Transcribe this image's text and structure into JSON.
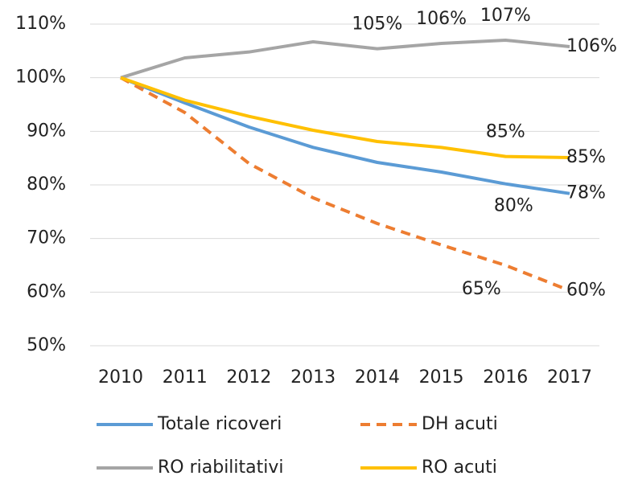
{
  "chart_data": {
    "type": "line",
    "categories": [
      "2010",
      "2011",
      "2012",
      "2013",
      "2014",
      "2015",
      "2016",
      "2017"
    ],
    "series": [
      {
        "name": "Totale ricoveri",
        "color": "#5b9bd5",
        "dashed": false,
        "values": [
          100,
          95.3,
          90.8,
          87.0,
          84.2,
          82.4,
          80.2,
          78.4
        ],
        "value_labels": [
          null,
          null,
          null,
          null,
          null,
          null,
          "80%",
          "78%"
        ]
      },
      {
        "name": "DH acuti",
        "color": "#ed7d31",
        "dashed": true,
        "values": [
          100,
          93.5,
          84.0,
          77.6,
          72.8,
          68.8,
          65.0,
          60.3
        ],
        "value_labels": [
          null,
          null,
          null,
          null,
          null,
          null,
          "65%",
          "60%"
        ]
      },
      {
        "name": "RO riabilitativi",
        "color": "#a5a5a5",
        "dashed": false,
        "values": [
          100,
          103.7,
          104.8,
          106.7,
          105.4,
          106.4,
          107.0,
          105.8
        ],
        "value_labels": [
          null,
          null,
          null,
          null,
          "105%",
          "106%",
          "107%",
          "106%"
        ]
      },
      {
        "name": "RO acuti",
        "color": "#ffc000",
        "dashed": false,
        "values": [
          100,
          95.8,
          92.8,
          90.2,
          88.1,
          87.0,
          85.3,
          85.1
        ],
        "value_labels": [
          null,
          null,
          null,
          null,
          null,
          null,
          "85%",
          "85%"
        ]
      }
    ],
    "ylim": [
      50,
      110
    ],
    "yticks": [
      {
        "value": 50,
        "label": "50%"
      },
      {
        "value": 60,
        "label": "60%"
      },
      {
        "value": 70,
        "label": "70%"
      },
      {
        "value": 80,
        "label": "80%"
      },
      {
        "value": 90,
        "label": "90%"
      },
      {
        "value": 100,
        "label": "100%"
      },
      {
        "value": 110,
        "label": "110%"
      }
    ],
    "grid": true,
    "legend": "bottom"
  }
}
